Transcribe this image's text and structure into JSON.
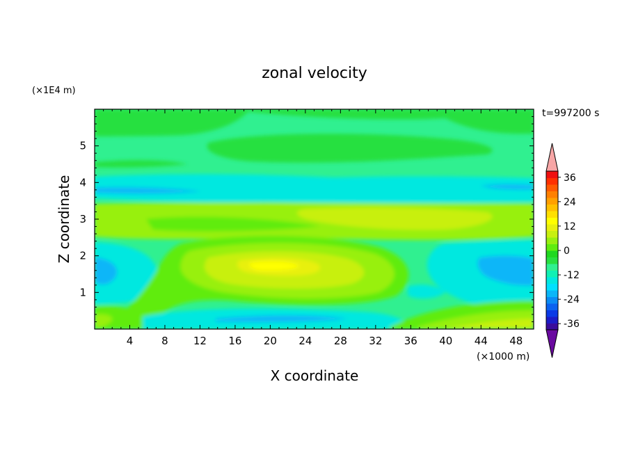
{
  "chart_data": {
    "type": "contour",
    "title": "zonal velocity",
    "xlabel": "X coordinate",
    "ylabel": "Z coordinate",
    "x_unit_label": "(×1000 m)",
    "y_unit_label": "(×1E4 m)",
    "time_label": "t=997200 s",
    "xlim": [
      0,
      50
    ],
    "ylim": [
      0,
      6
    ],
    "x_ticks": [
      4,
      8,
      12,
      16,
      20,
      24,
      28,
      32,
      36,
      40,
      44,
      48
    ],
    "y_ticks": [
      1,
      2,
      3,
      4,
      5
    ],
    "colorbar": {
      "levels": [
        -42,
        -39,
        -36,
        -33,
        -30,
        -27,
        -24,
        -21,
        -18,
        -15,
        -12,
        -9,
        -6,
        -3,
        0,
        3,
        6,
        9,
        12,
        15,
        18,
        21,
        24,
        27,
        30,
        33,
        36,
        39,
        42
      ],
      "tick_labels": [
        "36",
        "24",
        "12",
        "0",
        "-12",
        "-24",
        "-36"
      ],
      "tick_values": [
        36,
        24,
        12,
        0,
        -12,
        -24,
        -36
      ],
      "colors": [
        "#6a0aa0",
        "#3a0c9c",
        "#1c1cc8",
        "#0a3ae6",
        "#0a62f0",
        "#0a8cf5",
        "#0ab6f8",
        "#00e0ff",
        "#00e8e0",
        "#10f0b4",
        "#30f090",
        "#28e040",
        "#20d820",
        "#60ec10",
        "#98f010",
        "#c8f010",
        "#e8f010",
        "#ffff00",
        "#ffe000",
        "#ffc000",
        "#ffa000",
        "#ff8000",
        "#ff5a00",
        "#ff3000",
        "#f01010",
        "#f7a6a6"
      ]
    }
  }
}
